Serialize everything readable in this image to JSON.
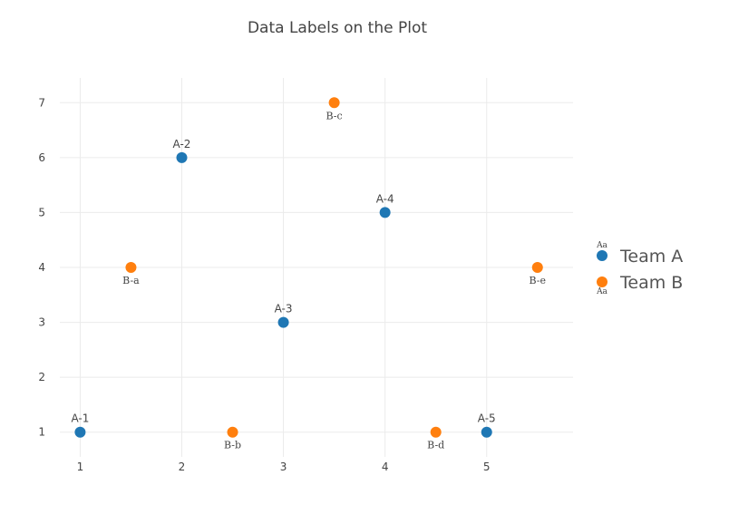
{
  "chart_data": {
    "type": "scatter",
    "title": "Data Labels on the Plot",
    "xlabel": "",
    "ylabel": "",
    "xlim": [
      0.8,
      5.85
    ],
    "ylim": [
      0.55,
      7.45
    ],
    "xticks": [
      1,
      2,
      3,
      4,
      5
    ],
    "yticks": [
      1,
      2,
      3,
      4,
      5,
      6,
      7
    ],
    "grid": true,
    "legend_position": "right",
    "legend_sample_text": "Aa",
    "series": [
      {
        "name": "Team A",
        "color": "#1f77b4",
        "label_position": "top",
        "points": [
          {
            "x": 1,
            "y": 1,
            "label": "A-1"
          },
          {
            "x": 2,
            "y": 6,
            "label": "A-2"
          },
          {
            "x": 3,
            "y": 3,
            "label": "A-3"
          },
          {
            "x": 4,
            "y": 5,
            "label": "A-4"
          },
          {
            "x": 5,
            "y": 1,
            "label": "A-5"
          }
        ]
      },
      {
        "name": "Team B",
        "color": "#ff7f0e",
        "label_position": "bottom",
        "points": [
          {
            "x": 1.5,
            "y": 4,
            "label": "B-a"
          },
          {
            "x": 2.5,
            "y": 1,
            "label": "B-b"
          },
          {
            "x": 3.5,
            "y": 7,
            "label": "B-c"
          },
          {
            "x": 4.5,
            "y": 1,
            "label": "B-d"
          },
          {
            "x": 5.5,
            "y": 4,
            "label": "B-e"
          }
        ]
      }
    ]
  }
}
